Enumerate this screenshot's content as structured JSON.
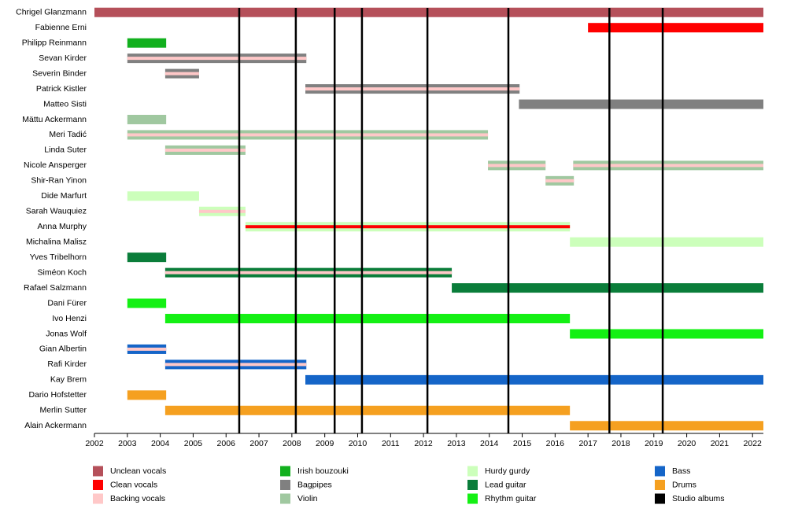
{
  "chart_data": {
    "type": "timeline",
    "xlim": [
      2002,
      2022.33
    ],
    "xticks": [
      2002,
      2003,
      2004,
      2005,
      2006,
      2007,
      2008,
      2009,
      2010,
      2011,
      2012,
      2013,
      2014,
      2015,
      2016,
      2017,
      2018,
      2019,
      2020,
      2021,
      2022
    ],
    "roles": [
      {
        "name": "Unclean vocals",
        "color": "#b5505a"
      },
      {
        "name": "Clean vocals",
        "color": "#ff0000"
      },
      {
        "name": "Backing vocals",
        "color": "#ffc8c8"
      },
      {
        "name": "Irish bouzouki",
        "color": "#12b01e"
      },
      {
        "name": "Bagpipes",
        "color": "#808080"
      },
      {
        "name": "Violin",
        "color": "#a0c8a0"
      },
      {
        "name": "Hurdy gurdy",
        "color": "#ccffbb"
      },
      {
        "name": "Lead guitar",
        "color": "#0a7d3a"
      },
      {
        "name": "Rhythm guitar",
        "color": "#14f014"
      },
      {
        "name": "Bass",
        "color": "#1565c8"
      },
      {
        "name": "Drums",
        "color": "#f5a020"
      }
    ],
    "albums": {
      "name": "Studio albums",
      "color": "#000000",
      "values": [
        2006.4,
        2008.12,
        2009.3,
        2010.13,
        2012.12,
        2014.58,
        2017.65,
        2019.27
      ]
    },
    "members": [
      {
        "name": "Chrigel Glanzmann",
        "spans": [
          {
            "start": 2002,
            "end": 2022.33,
            "role": "Unclean vocals"
          }
        ]
      },
      {
        "name": "Fabienne Erni",
        "spans": [
          {
            "start": 2017.0,
            "end": 2022.33,
            "role": "Clean vocals"
          }
        ]
      },
      {
        "name": "Philipp Reinmann",
        "spans": [
          {
            "start": 2003,
            "end": 2004.18,
            "role": "Irish bouzouki"
          }
        ]
      },
      {
        "name": "Sevan Kirder",
        "spans": [
          {
            "start": 2003,
            "end": 2008.44,
            "role": "Bagpipes",
            "stripe": "Backing vocals"
          }
        ]
      },
      {
        "name": "Severin Binder",
        "spans": [
          {
            "start": 2004.15,
            "end": 2005.18,
            "role": "Bagpipes",
            "stripe": "Backing vocals"
          }
        ]
      },
      {
        "name": "Patrick Kistler",
        "spans": [
          {
            "start": 2008.41,
            "end": 2014.92,
            "role": "Bagpipes",
            "stripe": "Backing vocals"
          }
        ]
      },
      {
        "name": "Matteo Sisti",
        "spans": [
          {
            "start": 2014.9,
            "end": 2022.33,
            "role": "Bagpipes"
          }
        ]
      },
      {
        "name": "Mättu Ackermann",
        "spans": [
          {
            "start": 2003,
            "end": 2004.18,
            "role": "Violin"
          }
        ]
      },
      {
        "name": "Meri Tadić",
        "spans": [
          {
            "start": 2003,
            "end": 2013.96,
            "role": "Violin",
            "stripe": "Backing vocals"
          }
        ]
      },
      {
        "name": "Linda Suter",
        "spans": [
          {
            "start": 2004.15,
            "end": 2006.59,
            "role": "Violin",
            "stripe": "Backing vocals"
          }
        ]
      },
      {
        "name": "Nicole Ansperger",
        "spans": [
          {
            "start": 2013.96,
            "end": 2015.71,
            "role": "Violin",
            "stripe": "Backing vocals"
          },
          {
            "start": 2016.55,
            "end": 2022.33,
            "role": "Violin",
            "stripe": "Backing vocals"
          }
        ]
      },
      {
        "name": "Shir-Ran Yinon",
        "spans": [
          {
            "start": 2015.71,
            "end": 2016.57,
            "role": "Violin",
            "stripe": "Backing vocals"
          }
        ]
      },
      {
        "name": "Dide Marfurt",
        "spans": [
          {
            "start": 2003,
            "end": 2005.18,
            "role": "Hurdy gurdy"
          }
        ]
      },
      {
        "name": "Sarah Wauquiez",
        "spans": [
          {
            "start": 2005.18,
            "end": 2006.59,
            "role": "Hurdy gurdy",
            "stripe": "Backing vocals"
          }
        ]
      },
      {
        "name": "Anna Murphy",
        "spans": [
          {
            "start": 2006.59,
            "end": 2016.45,
            "role": "Hurdy gurdy",
            "stripe": "Clean vocals"
          }
        ]
      },
      {
        "name": "Michalina Malisz",
        "spans": [
          {
            "start": 2016.45,
            "end": 2022.33,
            "role": "Hurdy gurdy"
          }
        ]
      },
      {
        "name": "Yves Tribelhorn",
        "spans": [
          {
            "start": 2003,
            "end": 2004.18,
            "role": "Lead guitar"
          }
        ]
      },
      {
        "name": "Siméon Koch",
        "spans": [
          {
            "start": 2004.15,
            "end": 2012.86,
            "role": "Lead guitar",
            "stripe": "Backing vocals"
          }
        ]
      },
      {
        "name": "Rafael Salzmann",
        "spans": [
          {
            "start": 2012.86,
            "end": 2022.33,
            "role": "Lead guitar"
          }
        ]
      },
      {
        "name": "Dani Fürer",
        "spans": [
          {
            "start": 2003,
            "end": 2004.18,
            "role": "Rhythm guitar"
          }
        ]
      },
      {
        "name": "Ivo Henzi",
        "spans": [
          {
            "start": 2004.15,
            "end": 2016.45,
            "role": "Rhythm guitar"
          }
        ]
      },
      {
        "name": "Jonas Wolf",
        "spans": [
          {
            "start": 2016.45,
            "end": 2022.33,
            "role": "Rhythm guitar"
          }
        ]
      },
      {
        "name": "Gian Albertin",
        "spans": [
          {
            "start": 2003,
            "end": 2004.18,
            "role": "Bass",
            "stripe": "Backing vocals"
          }
        ]
      },
      {
        "name": "Rafi Kirder",
        "spans": [
          {
            "start": 2004.15,
            "end": 2008.44,
            "role": "Bass",
            "stripe": "Backing vocals"
          }
        ]
      },
      {
        "name": "Kay Brem",
        "spans": [
          {
            "start": 2008.41,
            "end": 2022.33,
            "role": "Bass"
          }
        ]
      },
      {
        "name": "Dario Hofstetter",
        "spans": [
          {
            "start": 2003,
            "end": 2004.18,
            "role": "Drums"
          }
        ]
      },
      {
        "name": "Merlin Sutter",
        "spans": [
          {
            "start": 2004.15,
            "end": 2016.45,
            "role": "Drums"
          }
        ]
      },
      {
        "name": "Alain Ackermann",
        "spans": [
          {
            "start": 2016.45,
            "end": 2022.33,
            "role": "Drums"
          }
        ]
      }
    ]
  }
}
